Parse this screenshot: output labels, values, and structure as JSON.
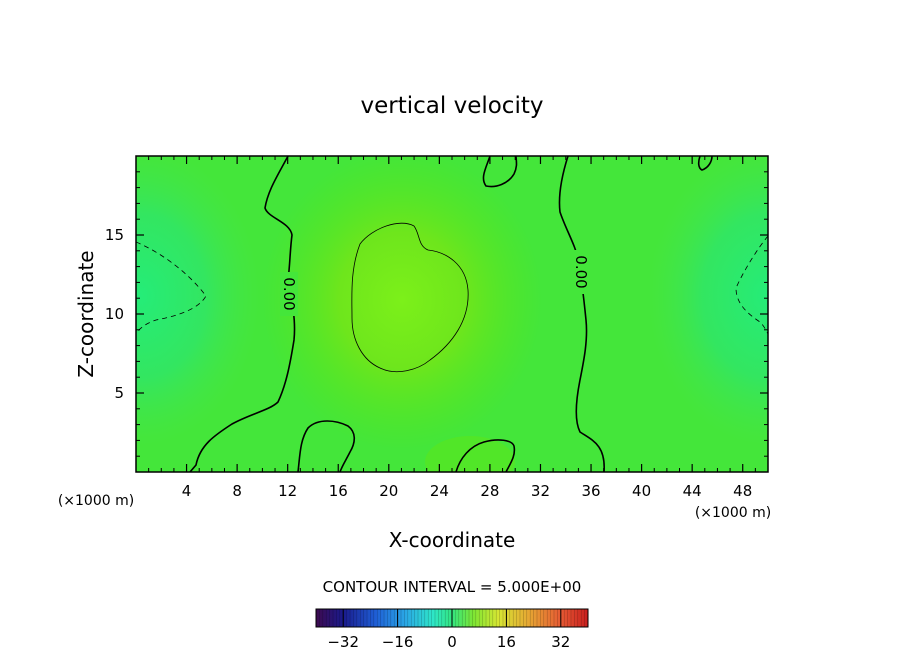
{
  "chart_data": {
    "type": "heatmap",
    "title": "vertical velocity",
    "xlabel": "X-coordinate",
    "ylabel": "Z-coordinate",
    "x_unit": "(×1000 m)",
    "z_unit": "(×1000 m)",
    "xlim": [
      0,
      50
    ],
    "ylim": [
      0,
      20
    ],
    "xticks": [
      4,
      8,
      12,
      16,
      20,
      24,
      28,
      32,
      36,
      40,
      44,
      48
    ],
    "yticks": [
      5,
      10,
      15
    ],
    "contour_interval_text": "CONTOUR INTERVAL = 5.000E+00",
    "contour_label": "0.00",
    "colorbar": {
      "range": [
        -40,
        40
      ],
      "ticks": [
        -32,
        -16,
        0,
        16,
        32
      ],
      "colors": [
        "#3d0a4f",
        "#1a1a8c",
        "#1f5fd6",
        "#2aa8e6",
        "#2ee6c8",
        "#33e680",
        "#7fe633",
        "#d6e633",
        "#e6a833",
        "#e65a33",
        "#c81e1e"
      ]
    },
    "field_description": {
      "positive_max": {
        "x": 21,
        "z": 10.5,
        "value": 5
      },
      "negative_min_left": {
        "x": 0,
        "z": 11,
        "value": -5
      },
      "negative_min_right": {
        "x": 50,
        "z": 11,
        "value": -5
      }
    }
  }
}
